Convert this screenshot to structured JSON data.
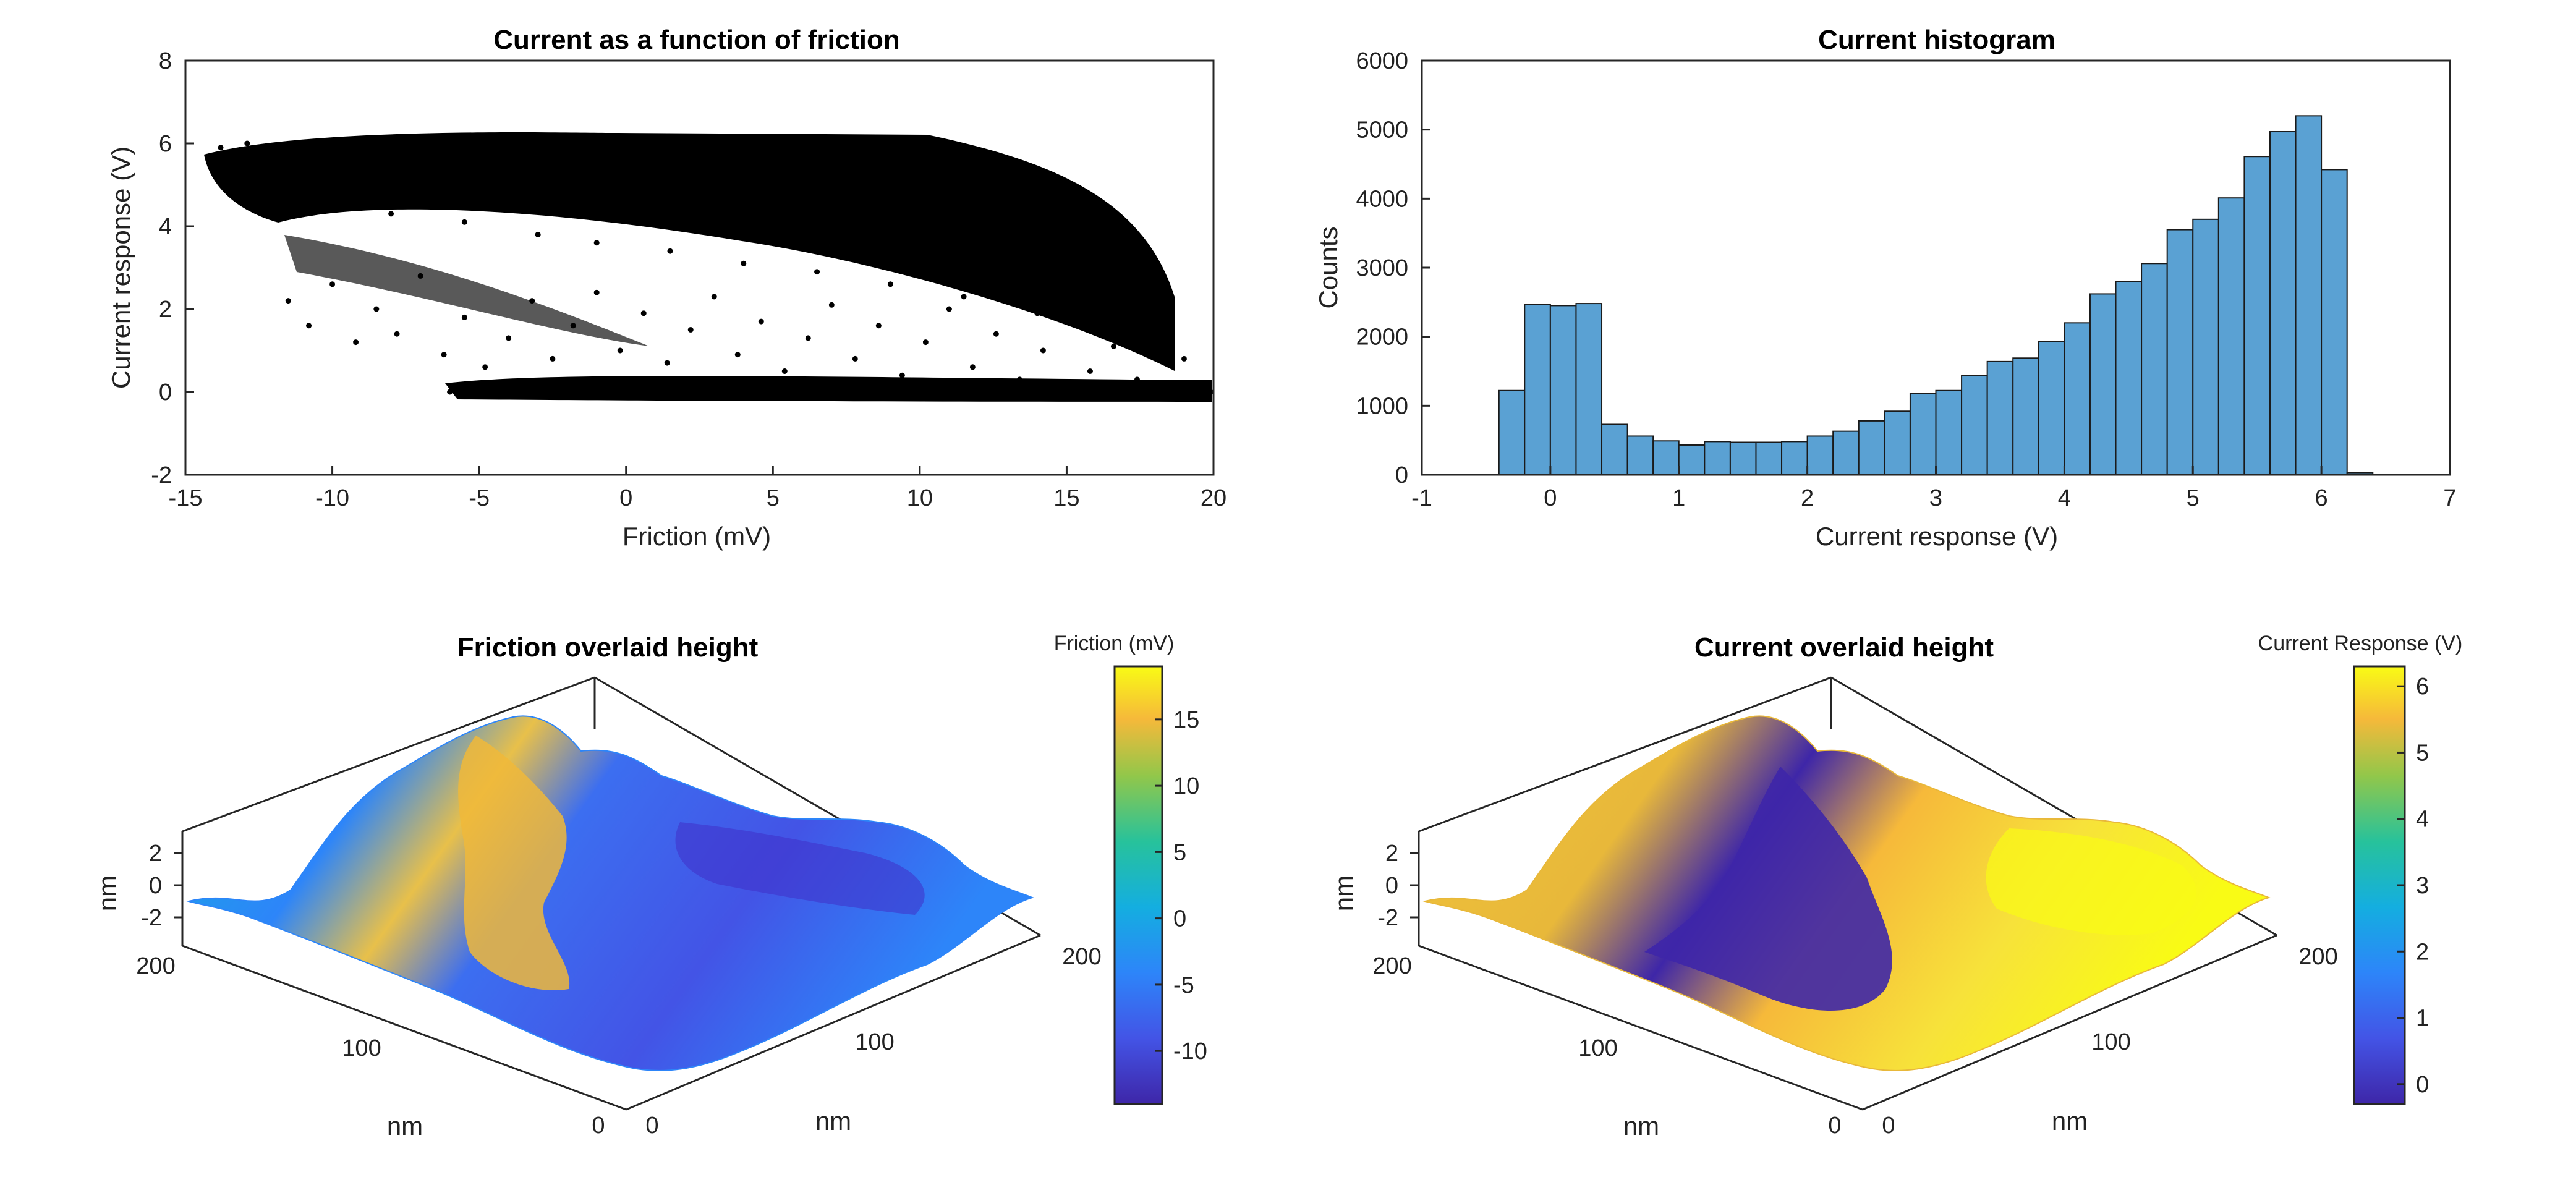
{
  "chart_data": [
    {
      "type": "scatter",
      "title": "Current as a function of friction",
      "xlabel": "Friction (mV)",
      "ylabel": "Current response (V)",
      "xlim": [
        -15,
        20
      ],
      "ylim": [
        -2,
        8
      ],
      "xticks": [
        -15,
        -10,
        -5,
        0,
        5,
        10,
        15,
        20
      ],
      "yticks": [
        -2,
        0,
        2,
        4,
        6,
        8
      ],
      "marker_color": "#000000",
      "grid": false,
      "points": [
        [
          -14.2,
          5.6
        ],
        [
          -13.8,
          5.9
        ],
        [
          -13.3,
          5.4
        ],
        [
          -12.9,
          6.0
        ],
        [
          -12.5,
          5.7
        ],
        [
          -12.0,
          5.2
        ],
        [
          -11.6,
          5.9
        ],
        [
          -11.2,
          4.8
        ],
        [
          -10.8,
          5.5
        ],
        [
          -10.3,
          6.0
        ],
        [
          -9.9,
          4.6
        ],
        [
          -9.5,
          5.8
        ],
        [
          -9.0,
          5.1
        ],
        [
          -8.5,
          5.9
        ],
        [
          -8.0,
          4.3
        ],
        [
          -7.5,
          5.6
        ],
        [
          -7.0,
          6.0
        ],
        [
          -6.5,
          4.9
        ],
        [
          -6.0,
          5.7
        ],
        [
          -5.5,
          4.1
        ],
        [
          -5.0,
          5.4
        ],
        [
          -4.5,
          6.0
        ],
        [
          -4.0,
          4.6
        ],
        [
          -3.5,
          5.2
        ],
        [
          -3.0,
          3.8
        ],
        [
          -2.5,
          5.9
        ],
        [
          -2.0,
          4.4
        ],
        [
          -1.5,
          5.6
        ],
        [
          -1.0,
          3.6
        ],
        [
          -0.5,
          5.0
        ],
        [
          0.0,
          6.0
        ],
        [
          0.5,
          4.2
        ],
        [
          1.0,
          5.5
        ],
        [
          1.5,
          3.4
        ],
        [
          2.0,
          4.8
        ],
        [
          2.5,
          5.9
        ],
        [
          3.0,
          3.9
        ],
        [
          3.5,
          5.2
        ],
        [
          4.0,
          3.1
        ],
        [
          4.5,
          4.6
        ],
        [
          5.0,
          5.8
        ],
        [
          5.5,
          3.6
        ],
        [
          6.0,
          4.9
        ],
        [
          6.5,
          2.9
        ],
        [
          7.0,
          4.3
        ],
        [
          7.5,
          5.5
        ],
        [
          8.0,
          3.2
        ],
        [
          8.5,
          4.6
        ],
        [
          9.0,
          2.6
        ],
        [
          9.5,
          4.0
        ],
        [
          10.0,
          5.2
        ],
        [
          10.5,
          2.9
        ],
        [
          11.0,
          4.2
        ],
        [
          11.5,
          2.3
        ],
        [
          12.0,
          3.7
        ],
        [
          12.5,
          4.8
        ],
        [
          13.0,
          2.5
        ],
        [
          13.5,
          3.9
        ],
        [
          14.0,
          1.9
        ],
        [
          14.5,
          3.2
        ],
        [
          15.0,
          4.3
        ],
        [
          15.5,
          2.0
        ],
        [
          16.0,
          3.1
        ],
        [
          16.5,
          1.5
        ],
        [
          17.0,
          2.6
        ],
        [
          17.5,
          3.5
        ],
        [
          18.0,
          1.2
        ],
        [
          18.5,
          2.3
        ],
        [
          19.0,
          0.8
        ],
        [
          -11.5,
          2.2
        ],
        [
          -10.8,
          1.6
        ],
        [
          -10.0,
          2.6
        ],
        [
          -9.2,
          1.2
        ],
        [
          -8.5,
          2.0
        ],
        [
          -7.8,
          1.4
        ],
        [
          -7.0,
          2.8
        ],
        [
          -6.2,
          0.9
        ],
        [
          -5.5,
          1.8
        ],
        [
          -4.8,
          0.6
        ],
        [
          -4.0,
          1.3
        ],
        [
          -3.2,
          2.2
        ],
        [
          -2.5,
          0.8
        ],
        [
          -1.8,
          1.6
        ],
        [
          -1.0,
          2.4
        ],
        [
          -0.2,
          1.0
        ],
        [
          0.6,
          1.9
        ],
        [
          1.4,
          0.7
        ],
        [
          2.2,
          1.5
        ],
        [
          3.0,
          2.3
        ],
        [
          3.8,
          0.9
        ],
        [
          4.6,
          1.7
        ],
        [
          5.4,
          0.5
        ],
        [
          6.2,
          1.3
        ],
        [
          7.0,
          2.1
        ],
        [
          7.8,
          0.8
        ],
        [
          8.6,
          1.6
        ],
        [
          9.4,
          0.4
        ],
        [
          10.2,
          1.2
        ],
        [
          11.0,
          2.0
        ],
        [
          11.8,
          0.6
        ],
        [
          12.6,
          1.4
        ],
        [
          13.4,
          0.3
        ],
        [
          14.2,
          1.0
        ],
        [
          15.0,
          1.8
        ],
        [
          15.8,
          0.5
        ],
        [
          16.6,
          1.1
        ],
        [
          17.4,
          0.3
        ],
        [
          18.2,
          0.9
        ],
        [
          -6.0,
          0.0
        ],
        [
          -5.0,
          0.1
        ],
        [
          -4.0,
          -0.1
        ],
        [
          -3.0,
          0.05
        ],
        [
          -2.0,
          0.1
        ],
        [
          -1.0,
          -0.05
        ],
        [
          0.0,
          0.1
        ],
        [
          1.0,
          0.0
        ],
        [
          2.0,
          -0.1
        ],
        [
          3.0,
          0.1
        ],
        [
          4.0,
          0.0
        ],
        [
          5.0,
          0.05
        ],
        [
          6.0,
          -0.1
        ],
        [
          7.0,
          0.1
        ],
        [
          8.0,
          0.0
        ],
        [
          9.0,
          -0.05
        ],
        [
          10.0,
          0.1
        ],
        [
          11.0,
          0.0
        ],
        [
          12.0,
          -0.1
        ],
        [
          13.0,
          0.05
        ],
        [
          14.0,
          0.1
        ],
        [
          15.0,
          0.0
        ],
        [
          16.0,
          -0.05
        ],
        [
          17.0,
          0.1
        ],
        [
          18.0,
          0.0
        ],
        [
          19.0,
          0.05
        ],
        [
          19.9,
          0.0
        ]
      ]
    },
    {
      "type": "bar",
      "subtype": "histogram",
      "title": "Current histogram",
      "xlabel": "Current response (V)",
      "ylabel": "Counts",
      "xlim": [
        -1,
        7
      ],
      "ylim": [
        0,
        6000
      ],
      "xticks": [
        -1,
        0,
        1,
        2,
        3,
        4,
        5,
        6,
        7
      ],
      "yticks": [
        0,
        1000,
        2000,
        3000,
        4000,
        5000,
        6000
      ],
      "bin_width": 0.2,
      "bin_start": -0.4,
      "values": [
        1220,
        2470,
        2450,
        2480,
        730,
        560,
        490,
        430,
        480,
        470,
        470,
        480,
        560,
        630,
        780,
        920,
        1180,
        1220,
        1440,
        1640,
        1690,
        1930,
        2200,
        2620,
        2800,
        3060,
        3550,
        3700,
        4010,
        4610,
        4970,
        5200,
        4420,
        30
      ],
      "bar_color": "#5aa1d3",
      "grid": false
    },
    {
      "type": "surface",
      "title": "Friction overlaid height",
      "zlabel": "nm",
      "xlabel": "nm",
      "ylabel": "nm",
      "zticks": [
        "2",
        "0",
        "-2"
      ],
      "xticks": [
        "200",
        "100",
        "0"
      ],
      "yticks": [
        "0",
        "100",
        "200"
      ],
      "colorbar": {
        "label": "Friction (mV)",
        "ticks": [
          "15",
          "10",
          "5",
          "0",
          "-5",
          "-10"
        ],
        "range": [
          -14,
          19
        ],
        "tick_values": [
          15,
          10,
          5,
          0,
          -5,
          -10
        ]
      }
    },
    {
      "type": "surface",
      "title": "Current overlaid height",
      "zlabel": "nm",
      "xlabel": "nm",
      "ylabel": "nm",
      "zticks": [
        "2",
        "0",
        "-2"
      ],
      "xticks": [
        "200",
        "100",
        "0"
      ],
      "yticks": [
        "0",
        "100",
        "200"
      ],
      "colorbar": {
        "label": "Current Response (V)",
        "ticks": [
          "6",
          "5",
          "4",
          "3",
          "2",
          "1",
          "0"
        ],
        "range": [
          -0.3,
          6.3
        ],
        "tick_values": [
          6,
          5,
          4,
          3,
          2,
          1,
          0
        ]
      }
    }
  ]
}
